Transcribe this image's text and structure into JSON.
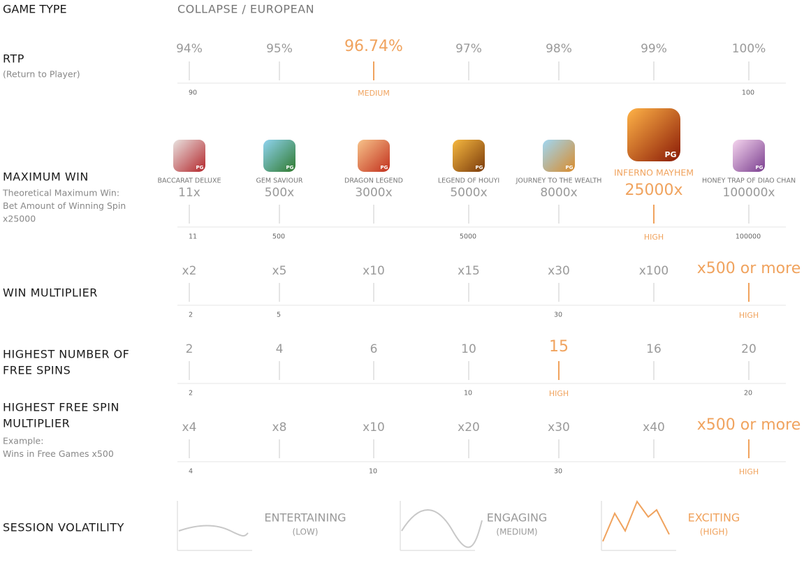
{
  "game_type": {
    "label": "GAME TYPE",
    "value": "COLLAPSE / EUROPEAN"
  },
  "rtp": {
    "label": [
      "RTP"
    ],
    "note": [
      "(Return to Player)"
    ],
    "options": [
      "94%",
      "95%",
      "96.74%",
      "97%",
      "98%",
      "99%",
      "100%"
    ],
    "highlight": 2,
    "scale": [
      "90",
      null,
      "MEDIUM",
      null,
      null,
      null,
      "100"
    ]
  },
  "max_win": {
    "label": [
      "MAXIMUM WIN"
    ],
    "note": [
      "Theoretical Maximum Win:",
      "Bet Amount of Winning Spin",
      "x25000"
    ],
    "badge": "PG",
    "games": [
      "BACCARAT DELUXE",
      "GEM SAVIOUR",
      "DRAGON LEGEND",
      "LEGEND OF HOUYI",
      "JOURNEY TO THE WEALTH",
      "INFERNO MAYHEM",
      "HONEY TRAP OF DIAO CHAN"
    ],
    "options": [
      "11x",
      "500x",
      "3000x",
      "5000x",
      "8000x",
      "25000x",
      "100000x"
    ],
    "highlight": 5,
    "scale": [
      "11",
      "500",
      null,
      "5000",
      null,
      "HIGH",
      "100000"
    ]
  },
  "win_multiplier": {
    "label": [
      "WIN MULTIPLIER"
    ],
    "options": [
      "x2",
      "x5",
      "x10",
      "x15",
      "x30",
      "x100",
      "x500 or more"
    ],
    "highlight": 6,
    "scale": [
      "2",
      "5",
      null,
      null,
      "30",
      null,
      "HIGH"
    ]
  },
  "free_spins": {
    "label": [
      "HIGHEST NUMBER OF",
      "FREE SPINS"
    ],
    "options": [
      "2",
      "4",
      "6",
      "10",
      "15",
      "16",
      "20"
    ],
    "highlight": 4,
    "scale": [
      "2",
      null,
      null,
      "10",
      "HIGH",
      null,
      "20"
    ]
  },
  "free_spin_multiplier": {
    "label": [
      "HIGHEST FREE SPIN",
      "MULTIPLIER"
    ],
    "note": [
      "Example:",
      "Wins in Free Games x500"
    ],
    "options": [
      "x4",
      "x8",
      "x10",
      "x20",
      "x30",
      "x40",
      "x500 or more"
    ],
    "highlight": 6,
    "scale": [
      "4",
      null,
      "10",
      null,
      "30",
      null,
      "HIGH"
    ]
  },
  "session_volatility": {
    "label": [
      "SESSION VOLATILITY"
    ],
    "levels": [
      {
        "name": "ENTERTAINING",
        "level": "(LOW)"
      },
      {
        "name": "ENGAGING",
        "level": "(MEDIUM)"
      },
      {
        "name": "EXCITING",
        "level": "(HIGH)"
      }
    ],
    "highlight": 2
  }
}
